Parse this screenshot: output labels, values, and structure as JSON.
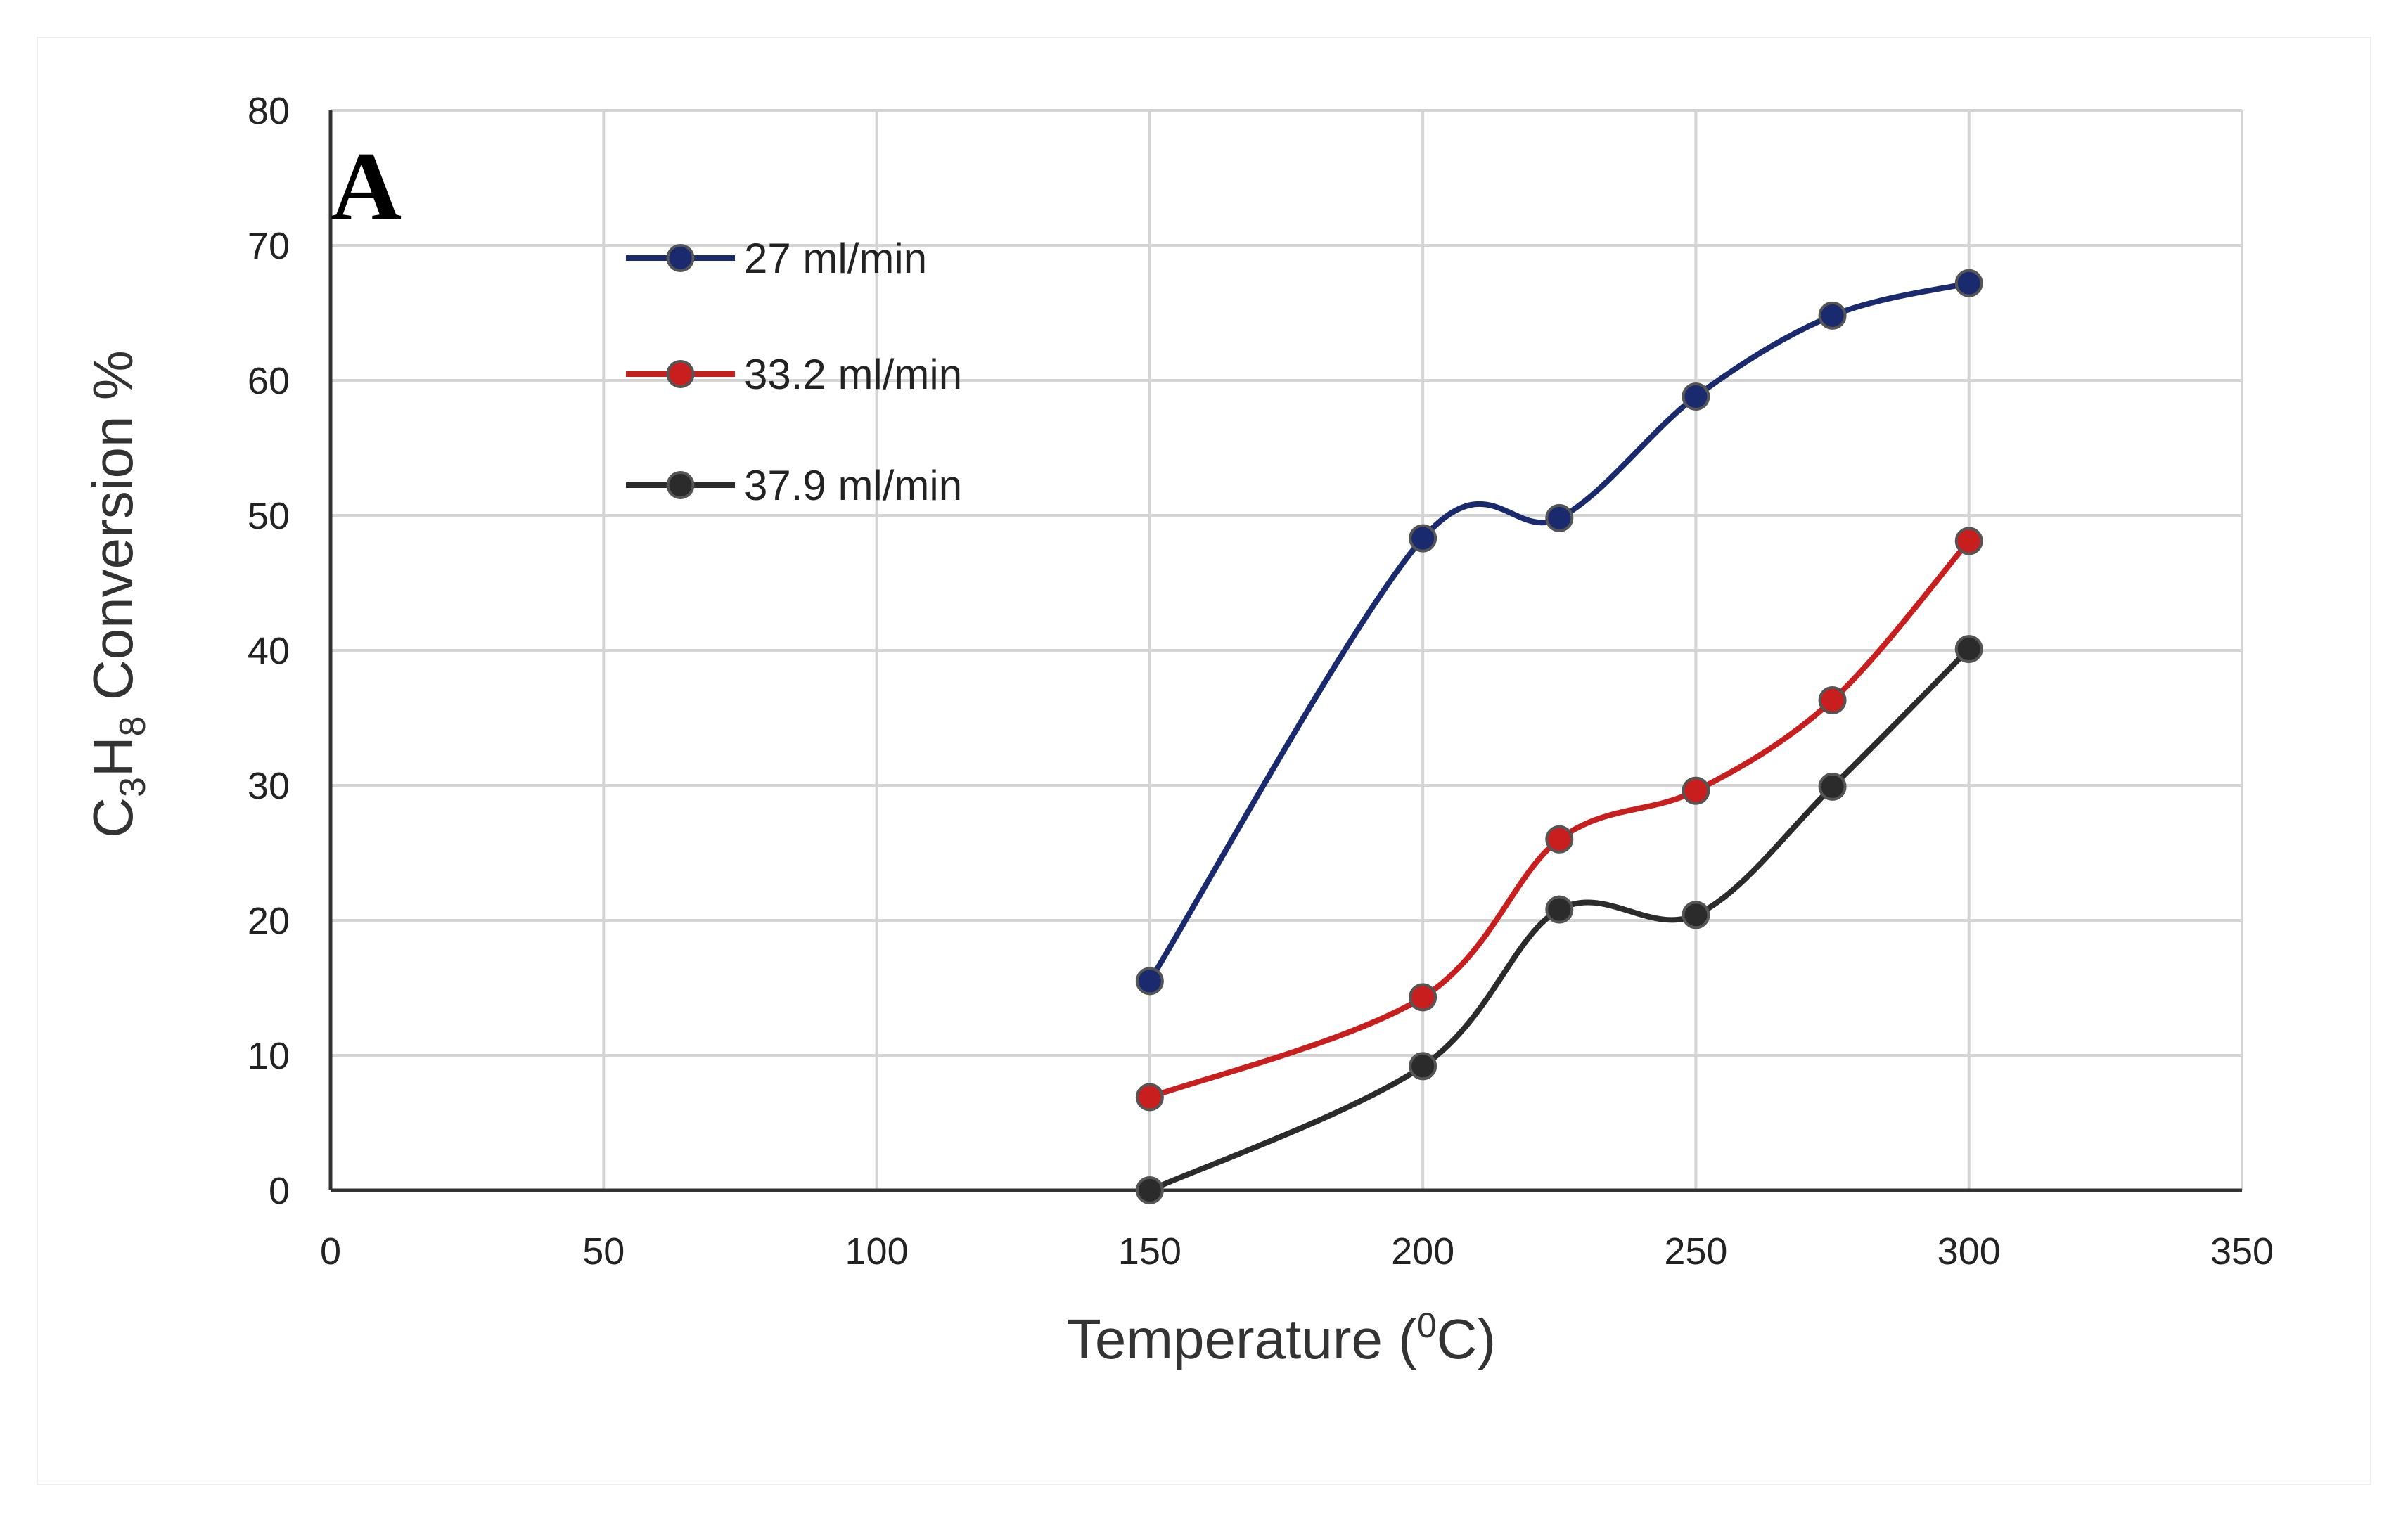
{
  "chart_data": {
    "type": "line",
    "panel_label": "A",
    "title": "",
    "xlabel_prefix": "Temperature (",
    "xlabel_sup": "0",
    "xlabel_suffix": "C)",
    "ylabel": {
      "c": "C",
      "c_sub": "3",
      "h": "H",
      "h_sub": "8",
      "rest": " Conversion %"
    },
    "xlim": [
      0,
      350
    ],
    "ylim": [
      0,
      80
    ],
    "xticks": [
      0,
      50,
      100,
      150,
      200,
      250,
      300,
      350
    ],
    "yticks": [
      0,
      10,
      20,
      30,
      40,
      50,
      60,
      70,
      80
    ],
    "grid": true,
    "legend_position": "upper-left-inside",
    "series": [
      {
        "name": "27 ml/min",
        "color": "#1a2a6e",
        "x": [
          150,
          200,
          225,
          250,
          275,
          300
        ],
        "y": [
          15.5,
          48.3,
          49.8,
          58.8,
          64.8,
          67.2
        ]
      },
      {
        "name": "33.2 ml/min",
        "color": "#c81e1e",
        "x": [
          150,
          200,
          225,
          250,
          275,
          300
        ],
        "y": [
          6.9,
          14.3,
          26.0,
          29.6,
          36.3,
          48.1
        ]
      },
      {
        "name": "37.9 ml/min",
        "color": "#2b2b2b",
        "x": [
          150,
          200,
          225,
          250,
          275,
          300
        ],
        "y": [
          0.0,
          9.2,
          20.8,
          20.4,
          29.9,
          40.1
        ]
      }
    ]
  }
}
